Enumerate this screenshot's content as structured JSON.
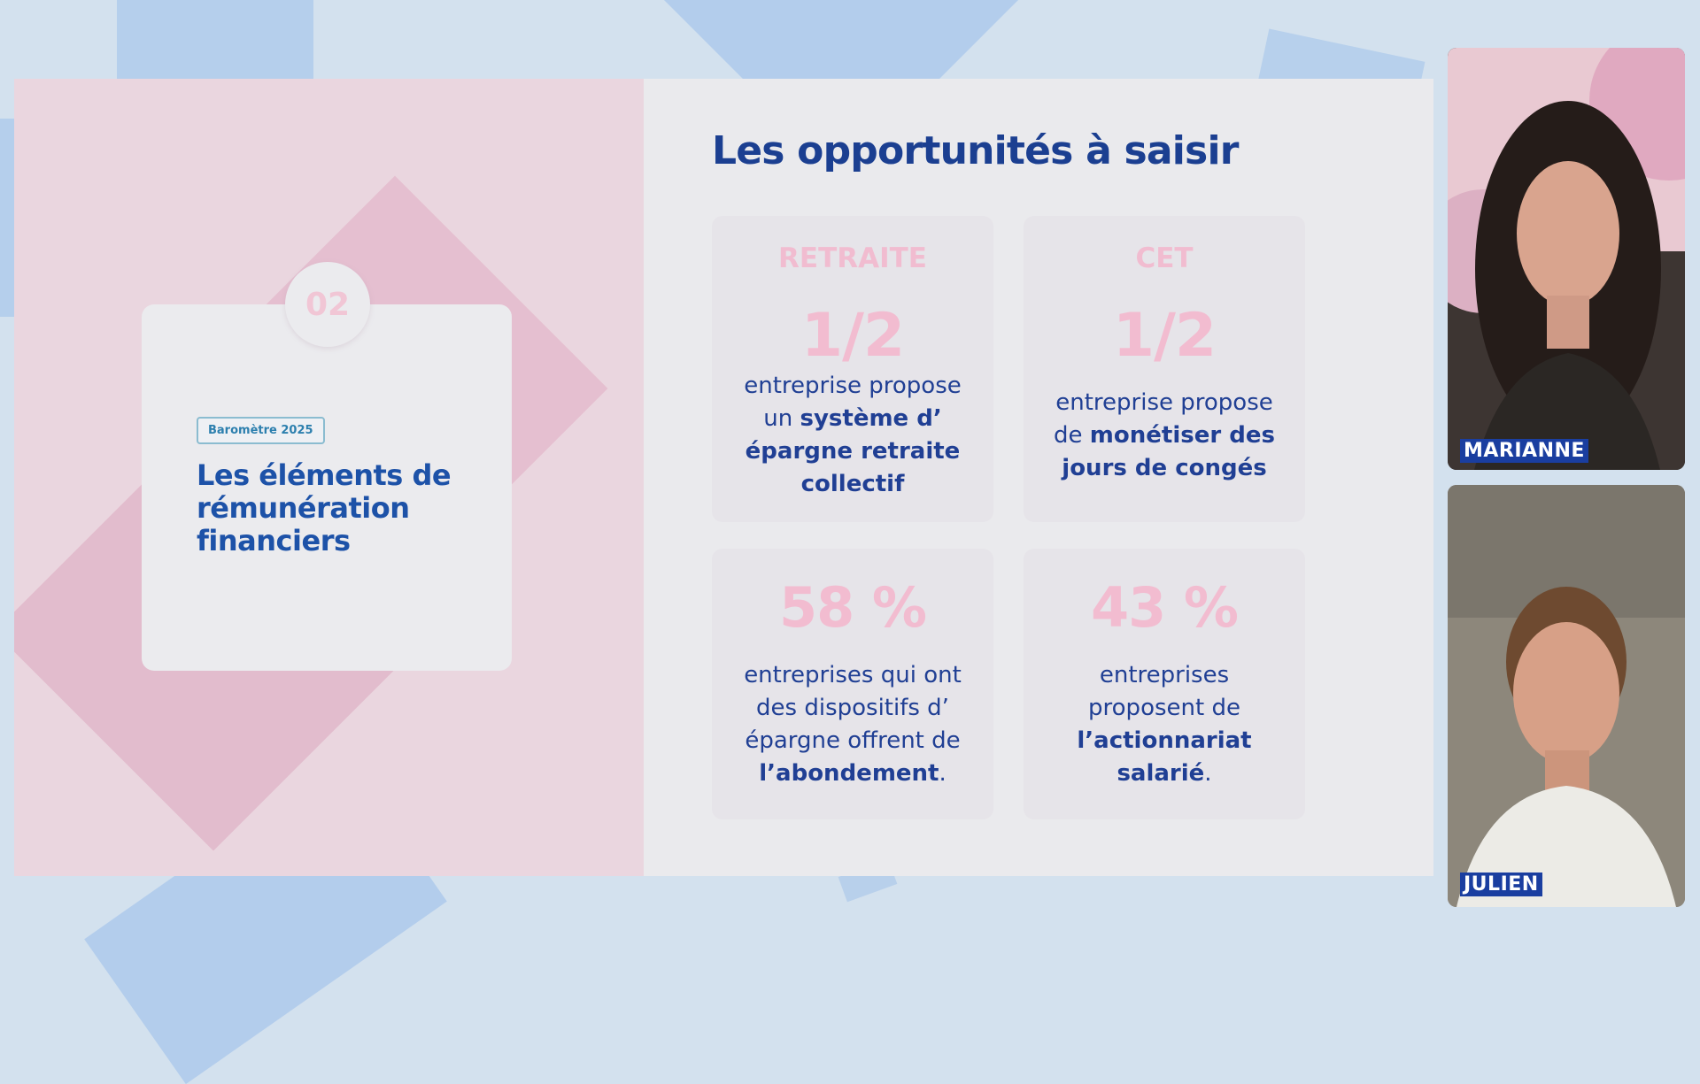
{
  "slide": {
    "section_number": "02",
    "badge": "Baromètre 2025",
    "section_title": "Les éléments de rémunération financiers",
    "title": "Les opportunités à saisir",
    "tiles": [
      {
        "label": "RETRAITE",
        "figure": "1/2",
        "text_parts": [
          "entreprise propose un ",
          "système d’ épargne retraite collectif",
          ""
        ]
      },
      {
        "label": "CET",
        "figure": "1/2",
        "text_parts": [
          "entreprise propose de ",
          "monétiser des jours de congés",
          ""
        ]
      },
      {
        "label": "",
        "figure": "58 %",
        "text_parts": [
          "entreprises qui ont des dispositifs d’ épargne offrent de ",
          "l’abondement",
          "."
        ]
      },
      {
        "label": "",
        "figure": "43 %",
        "text_parts": [
          "entreprises proposent de ",
          "l’actionnariat salarié",
          "."
        ]
      }
    ]
  },
  "participants": [
    {
      "name": "MARIANNE"
    },
    {
      "name": "JULIEN"
    }
  ],
  "colors": {
    "background": "#d3e1ee",
    "slide_left": "#ead6df",
    "slide_right": "#eaeaed",
    "title_blue": "#1b3f91",
    "accent_pink": "#f2bcd0",
    "name_tag": "#1a3ea0"
  }
}
